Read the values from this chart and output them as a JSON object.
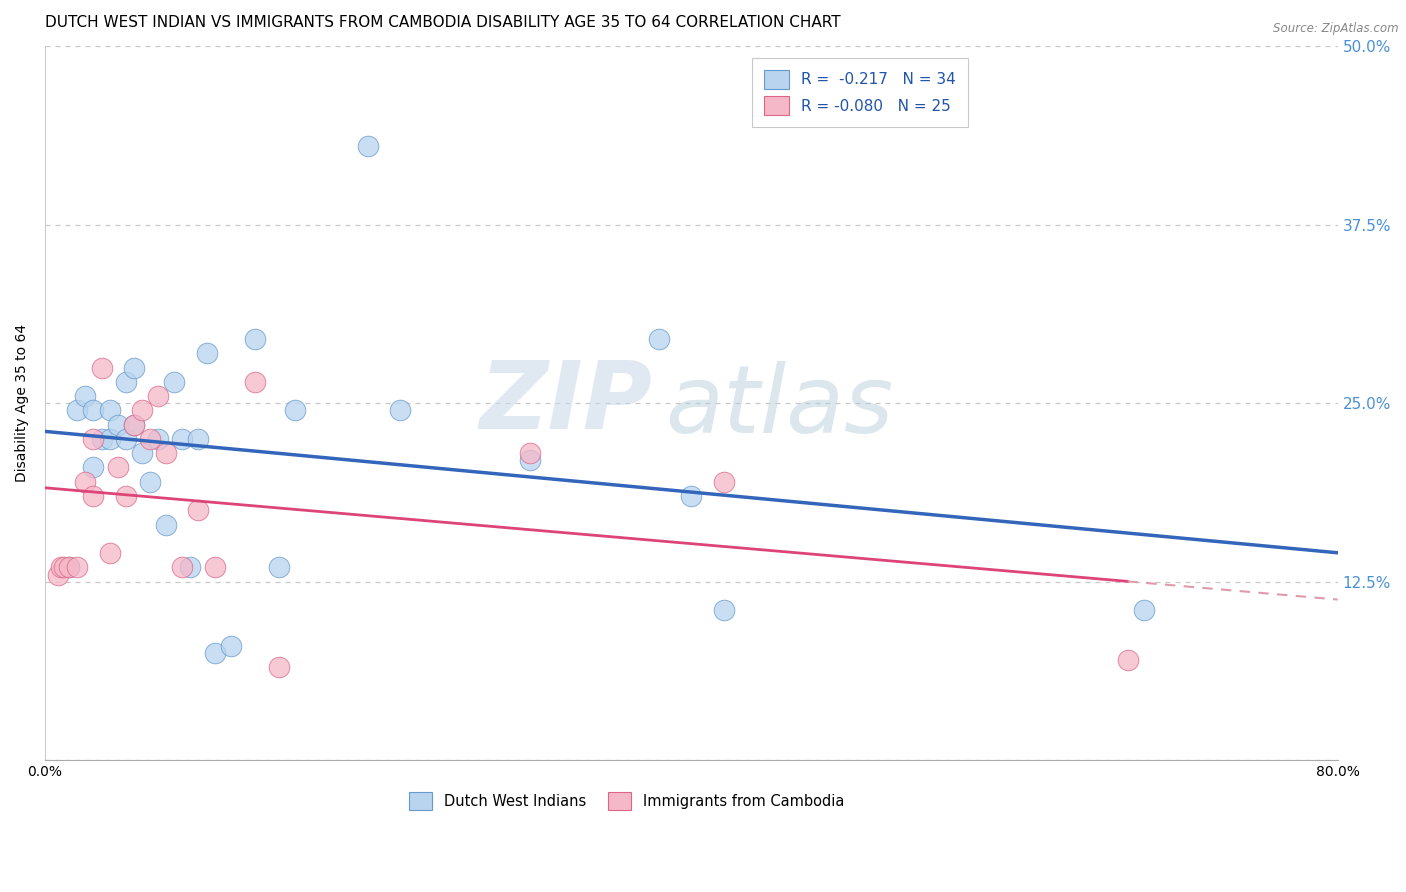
{
  "title": "DUTCH WEST INDIAN VS IMMIGRANTS FROM CAMBODIA DISABILITY AGE 35 TO 64 CORRELATION CHART",
  "source": "Source: ZipAtlas.com",
  "ylabel": "Disability Age 35 to 64",
  "xlim": [
    0.0,
    0.8
  ],
  "ylim": [
    0.0,
    0.5
  ],
  "xticks": [
    0.0,
    0.16,
    0.32,
    0.48,
    0.64,
    0.8
  ],
  "xticklabels": [
    "0.0%",
    "",
    "",
    "",
    "",
    "80.0%"
  ],
  "yticks": [
    0.0,
    0.125,
    0.25,
    0.375,
    0.5
  ],
  "yticklabels": [
    "",
    "12.5%",
    "25.0%",
    "37.5%",
    "50.0%"
  ],
  "grid_color": "#c8c8c8",
  "background_color": "#ffffff",
  "blue_fill_color": "#b8d4ee",
  "pink_fill_color": "#f5b8c8",
  "blue_edge_color": "#6699cc",
  "pink_edge_color": "#dd6688",
  "blue_line_color": "#3366bb",
  "pink_line_color": "#dd4477",
  "pink_dash_color": "#e09aaa",
  "legend_r1": "R =  -0.217",
  "legend_n1": "N = 34",
  "legend_r2": "R = -0.080",
  "legend_n2": "N = 25",
  "watermark_zip": "ZIP",
  "watermark_atlas": "atlas",
  "blue_x": [
    0.015,
    0.02,
    0.025,
    0.03,
    0.03,
    0.035,
    0.04,
    0.04,
    0.045,
    0.05,
    0.05,
    0.055,
    0.055,
    0.06,
    0.065,
    0.07,
    0.075,
    0.08,
    0.085,
    0.09,
    0.095,
    0.1,
    0.105,
    0.115,
    0.13,
    0.145,
    0.155,
    0.2,
    0.22,
    0.3,
    0.38,
    0.4,
    0.42,
    0.68
  ],
  "blue_y": [
    0.135,
    0.245,
    0.255,
    0.205,
    0.245,
    0.225,
    0.245,
    0.225,
    0.235,
    0.225,
    0.265,
    0.275,
    0.235,
    0.215,
    0.195,
    0.225,
    0.165,
    0.265,
    0.225,
    0.135,
    0.225,
    0.285,
    0.075,
    0.08,
    0.295,
    0.135,
    0.245,
    0.43,
    0.245,
    0.21,
    0.295,
    0.185,
    0.105,
    0.105
  ],
  "pink_x": [
    0.008,
    0.01,
    0.012,
    0.015,
    0.02,
    0.025,
    0.03,
    0.03,
    0.035,
    0.04,
    0.045,
    0.05,
    0.055,
    0.06,
    0.065,
    0.07,
    0.075,
    0.085,
    0.095,
    0.105,
    0.13,
    0.145,
    0.3,
    0.42,
    0.67
  ],
  "pink_y": [
    0.13,
    0.135,
    0.135,
    0.135,
    0.135,
    0.195,
    0.185,
    0.225,
    0.275,
    0.145,
    0.205,
    0.185,
    0.235,
    0.245,
    0.225,
    0.255,
    0.215,
    0.135,
    0.175,
    0.135,
    0.265,
    0.065,
    0.215,
    0.195,
    0.07
  ],
  "title_fontsize": 11,
  "axis_fontsize": 10,
  "tick_fontsize": 10,
  "right_tick_color": "#4a90d9",
  "legend_text_color": "#2255aa"
}
